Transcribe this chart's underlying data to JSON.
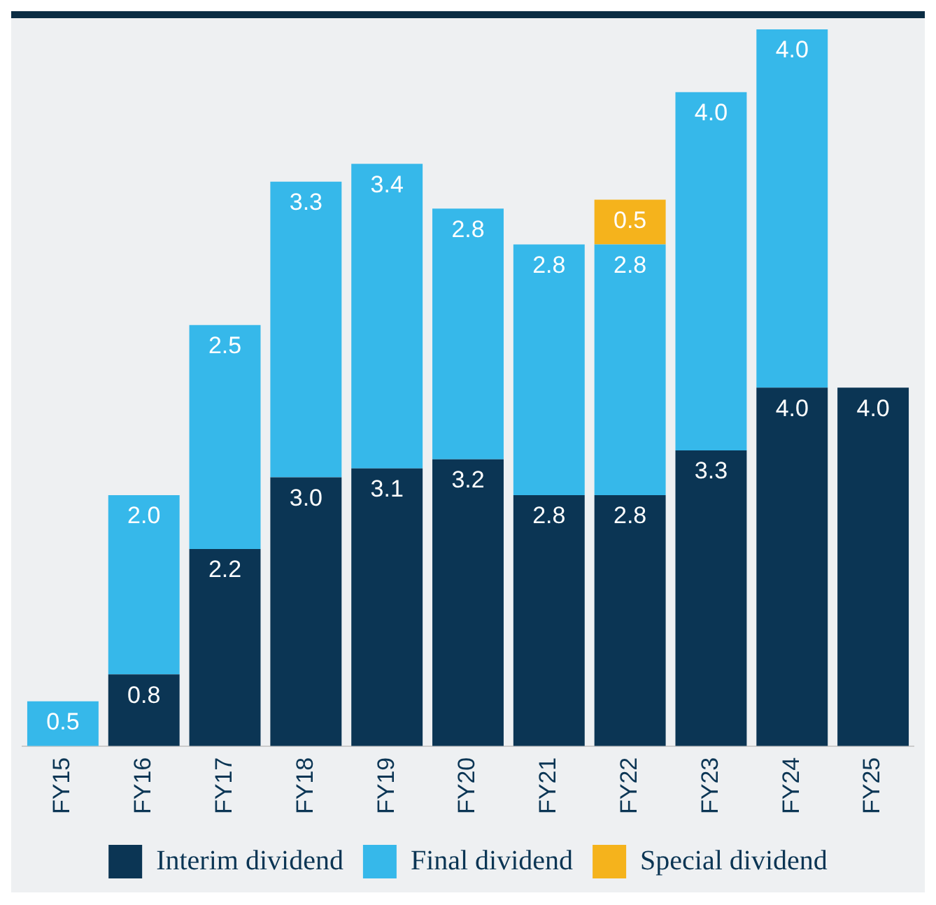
{
  "chart_data": {
    "type": "bar",
    "stacked": true,
    "categories": [
      "FY15",
      "FY16",
      "FY17",
      "FY18",
      "FY19",
      "FY20",
      "FY21",
      "FY22",
      "FY23",
      "FY24",
      "FY25"
    ],
    "series": [
      {
        "name": "Interim dividend",
        "color": "#0b3554",
        "values": [
          null,
          0.8,
          2.2,
          3.0,
          3.1,
          3.2,
          2.8,
          2.8,
          3.3,
          4.0,
          4.0
        ],
        "value_labels": [
          null,
          "0.8",
          "2.2",
          "3.0",
          "3.1",
          "3.2",
          "2.8",
          "2.8",
          "3.3",
          "4.0",
          "4.0"
        ]
      },
      {
        "name": "Final dividend",
        "color": "#36b8ea",
        "values": [
          0.5,
          2.0,
          2.5,
          3.3,
          3.4,
          2.8,
          2.8,
          2.8,
          4.0,
          4.0,
          null
        ],
        "value_labels": [
          "0.5",
          "2.0",
          "2.5",
          "3.3",
          "3.4",
          "2.8",
          "2.8",
          "2.8",
          "4.0",
          "4.0",
          null
        ]
      },
      {
        "name": "Special dividend",
        "color": "#f5b31c",
        "values": [
          null,
          null,
          null,
          null,
          null,
          null,
          null,
          0.5,
          null,
          null,
          null
        ],
        "value_labels": [
          null,
          null,
          null,
          null,
          null,
          null,
          null,
          "0.5",
          null,
          null,
          null
        ]
      }
    ],
    "ylim": [
      0,
      8
    ],
    "tick_labels": "x",
    "grid": false,
    "legend": "bottom"
  }
}
